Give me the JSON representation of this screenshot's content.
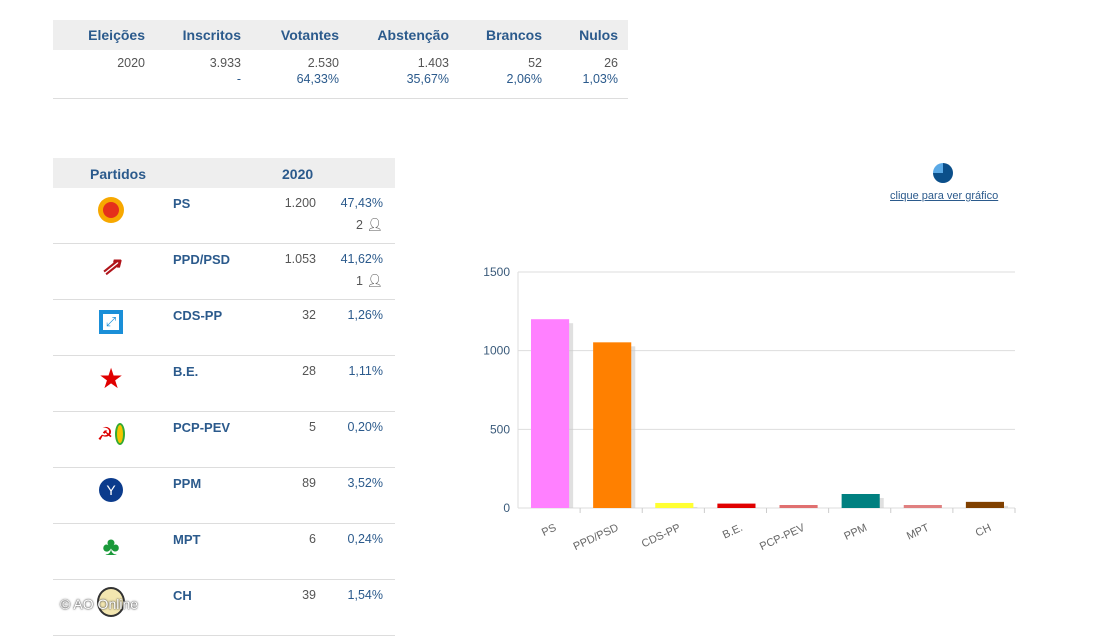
{
  "summary": {
    "headers": [
      "Eleições",
      "Inscritos",
      "Votantes",
      "Abstenção",
      "Brancos",
      "Nulos"
    ],
    "values": [
      "2020",
      "3.933",
      "2.530",
      "1.403",
      "52",
      "26"
    ],
    "pcts": [
      "",
      "-",
      "64,33%",
      "35,67%",
      "2,06%",
      "1,03%"
    ]
  },
  "parties": {
    "header_label": "Partidos",
    "header_year": "2020",
    "rows": [
      {
        "name": "PS",
        "votes": "1.200",
        "pct": "47,43%",
        "seats": "2",
        "logo": "ps-logo"
      },
      {
        "name": "PPD/PSD",
        "votes": "1.053",
        "pct": "41,62%",
        "seats": "1",
        "logo": "psd-logo"
      },
      {
        "name": "CDS-PP",
        "votes": "32",
        "pct": "1,26%",
        "logo": "cds-logo"
      },
      {
        "name": "B.E.",
        "votes": "28",
        "pct": "1,11%",
        "logo": "be-logo"
      },
      {
        "name": "PCP-PEV",
        "votes": "5",
        "pct": "0,20%",
        "logo": "pcp-pev-logo"
      },
      {
        "name": "PPM",
        "votes": "89",
        "pct": "3,52%",
        "logo": "ppm-logo"
      },
      {
        "name": "MPT",
        "votes": "6",
        "pct": "0,24%",
        "logo": "mpt-logo"
      },
      {
        "name": "CH",
        "votes": "39",
        "pct": "1,54%",
        "logo": "ch-logo"
      }
    ]
  },
  "chart_link": "clique para ver gráfico",
  "watermark": "© AO Online",
  "chart_data": {
    "type": "bar",
    "categories": [
      "PS",
      "PPD/PSD",
      "CDS-PP",
      "B.E.",
      "PCP-PEV",
      "PPM",
      "MPT",
      "CH"
    ],
    "values": [
      1200,
      1053,
      32,
      28,
      5,
      89,
      6,
      39
    ],
    "colors": [
      "#ff80ff",
      "#ff8000",
      "#ffff33",
      "#e00000",
      "#e07070",
      "#008080",
      "#e08080",
      "#804000"
    ],
    "yticks": [
      0,
      500,
      1000,
      1500
    ],
    "ylim": [
      0,
      1500
    ],
    "grid": true,
    "title": "",
    "xlabel": "",
    "ylabel": ""
  }
}
